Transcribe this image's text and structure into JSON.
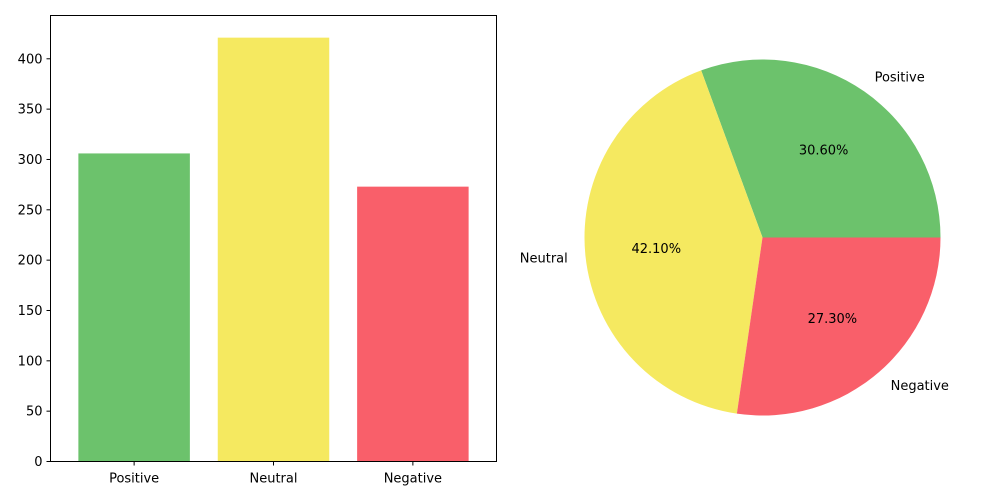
{
  "chart_data": [
    {
      "type": "bar",
      "categories": [
        "Positive",
        "Neutral",
        "Negative"
      ],
      "values": [
        306,
        421,
        273
      ],
      "colors": [
        "#6cc26c",
        "#f5e960",
        "#f95f6a"
      ],
      "ylim": [
        0,
        443
      ],
      "yticks": [
        0,
        50,
        100,
        150,
        200,
        250,
        300,
        350,
        400
      ],
      "grid": false,
      "title": "",
      "xlabel": "",
      "ylabel": ""
    },
    {
      "type": "pie",
      "labels": [
        "Positive",
        "Neutral",
        "Negative"
      ],
      "values": [
        30.6,
        42.1,
        27.3
      ],
      "value_labels": [
        "30.60%",
        "42.10%",
        "27.30%"
      ],
      "colors": [
        "#6cc26c",
        "#f5e960",
        "#f95f6a"
      ],
      "start_angle_deg": 0,
      "direction": "counterclockwise"
    }
  ]
}
